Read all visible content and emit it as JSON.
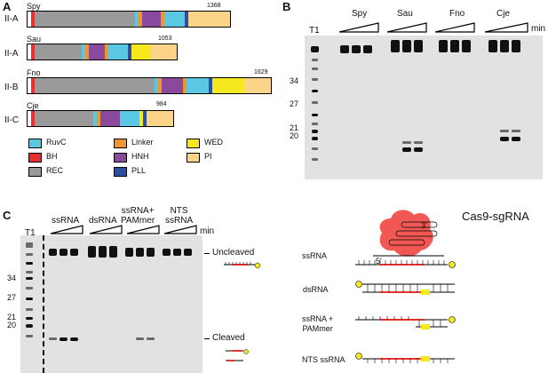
{
  "panelA": {
    "letter": "A",
    "proteins": [
      {
        "name": "Spy",
        "type": "II-A",
        "length": "1368"
      },
      {
        "name": "Sau",
        "type": "II-A",
        "length": "1053"
      },
      {
        "name": "Fno",
        "type": "II-B",
        "length": "1629"
      },
      {
        "name": "Cje",
        "type": "II-C",
        "length": "984"
      }
    ],
    "legend": [
      {
        "name": "RuvC",
        "color": "#5bc8e3"
      },
      {
        "name": "Linker",
        "color": "#f0962e"
      },
      {
        "name": "WED",
        "color": "#f5e81c"
      },
      {
        "name": "BH",
        "color": "#e8312f"
      },
      {
        "name": "HNH",
        "color": "#8a4a9c"
      },
      {
        "name": "PI",
        "color": "#fbd48a"
      },
      {
        "name": "REC",
        "color": "#9a9a9a"
      },
      {
        "name": "PLL",
        "color": "#2b4fa2"
      }
    ]
  },
  "panelB": {
    "letter": "B",
    "marker_lane": "T1",
    "groups": [
      "Spy",
      "Sau",
      "Fno",
      "Cje"
    ],
    "time_unit": "min",
    "size_markers": [
      "34",
      "27",
      "21",
      "20"
    ]
  },
  "panelC": {
    "letter": "C",
    "marker_lane": "T1",
    "groups": [
      "ssRNA",
      "dsRNA",
      "ssRNA+\nPAMmer",
      "NTS\nssRNA"
    ],
    "time_unit": "min",
    "size_markers": [
      "34",
      "27",
      "21",
      "20"
    ],
    "uncleaved_label": "Uncleaved",
    "cleaved_label": "Cleaved",
    "complex_label": "Cas9-sgRNA",
    "five_prime": "5'",
    "three_prime": "3'",
    "substrates": [
      "ssRNA",
      "dsRNA",
      "ssRNA +\nPAMmer",
      "NTS ssRNA"
    ]
  }
}
